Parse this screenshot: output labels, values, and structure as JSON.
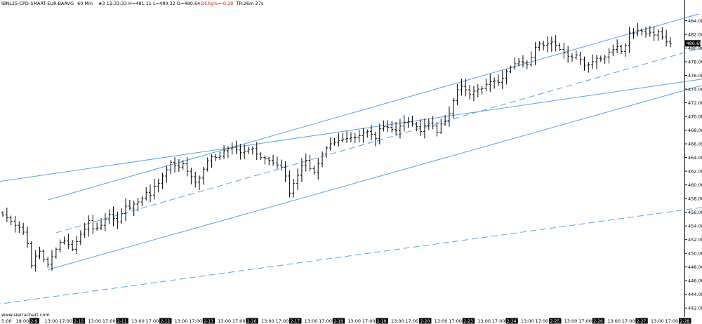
{
  "header": {
    "symbol": "IBNL25-CPD-SMART-EUR-BAAVG",
    "interval": "60 Min",
    "stats": "#3 12:33:33 H=481.11 L=480.32 O=480.64",
    "change": "DChg%=-0.30",
    "timer": "TR:26m 27s"
  },
  "watermark": "www.sierrachart.com",
  "last_price_label": "480.69",
  "colors": {
    "background": "#ffffff",
    "bars": "#000000",
    "trendlines": "#5aa0e6",
    "change_text": "#e00000",
    "last_price_box": "#000000"
  },
  "chart_data": {
    "type": "ohlc",
    "title": "IBNL25-CPD-SMART-EUR-BAAVG 60 Min",
    "ylim": [
      441,
      486
    ],
    "y_ticks": [
      "442.00",
      "444.00",
      "446.00",
      "448.00",
      "450.00",
      "452.00",
      "454.00",
      "456.00",
      "458.00",
      "460.00",
      "462.00",
      "464.00",
      "466.00",
      "468.00",
      "470.00",
      "472.00",
      "474.00",
      "476.00",
      "478.00",
      "480.00",
      "482.00",
      "484.00"
    ],
    "x_labels": [
      {
        "text": "5:00",
        "kind": "time"
      },
      {
        "text": "19:00",
        "kind": "time"
      },
      {
        "text": "2-9",
        "kind": "date"
      },
      {
        "text": "13:00",
        "kind": "time"
      },
      {
        "text": "17:00",
        "kind": "time"
      },
      {
        "text": "2-10",
        "kind": "date"
      },
      {
        "text": "13:00",
        "kind": "time"
      },
      {
        "text": "17:00",
        "kind": "time"
      },
      {
        "text": "2-11",
        "kind": "date"
      },
      {
        "text": "13:00",
        "kind": "time"
      },
      {
        "text": "17:00",
        "kind": "time"
      },
      {
        "text": "2-12",
        "kind": "date"
      },
      {
        "text": "13:00",
        "kind": "time"
      },
      {
        "text": "17:00",
        "kind": "time"
      },
      {
        "text": "2-13",
        "kind": "date"
      },
      {
        "text": "13:00",
        "kind": "time"
      },
      {
        "text": "17:00",
        "kind": "time"
      },
      {
        "text": "2-16",
        "kind": "date"
      },
      {
        "text": "13:00",
        "kind": "time"
      },
      {
        "text": "17:00",
        "kind": "time"
      },
      {
        "text": "2-17",
        "kind": "date"
      },
      {
        "text": "13:00",
        "kind": "time"
      },
      {
        "text": "17:00",
        "kind": "time"
      },
      {
        "text": "2-18",
        "kind": "date"
      },
      {
        "text": "13:00",
        "kind": "time"
      },
      {
        "text": "17:00",
        "kind": "time"
      },
      {
        "text": "2-19",
        "kind": "date"
      },
      {
        "text": "13:00",
        "kind": "time"
      },
      {
        "text": "17:00",
        "kind": "time"
      },
      {
        "text": "2-20",
        "kind": "date"
      },
      {
        "text": "13:00",
        "kind": "time"
      },
      {
        "text": "17:00",
        "kind": "time"
      },
      {
        "text": "2-23",
        "kind": "date"
      },
      {
        "text": "13:00",
        "kind": "time"
      },
      {
        "text": "17:00",
        "kind": "time"
      },
      {
        "text": "2-24",
        "kind": "date"
      },
      {
        "text": "13:00",
        "kind": "time"
      },
      {
        "text": "17:00",
        "kind": "time"
      },
      {
        "text": "2-25",
        "kind": "date"
      },
      {
        "text": "13:00",
        "kind": "time"
      },
      {
        "text": "17:00",
        "kind": "time"
      },
      {
        "text": "2-26",
        "kind": "date"
      },
      {
        "text": "13:00",
        "kind": "time"
      },
      {
        "text": "17:00",
        "kind": "time"
      },
      {
        "text": "2-27",
        "kind": "date"
      },
      {
        "text": "13:00",
        "kind": "time"
      },
      {
        "text": "17:00",
        "kind": "time"
      },
      {
        "text": "2-28",
        "kind": "date"
      }
    ],
    "closes": [
      455.6,
      455.2,
      454.7,
      454.1,
      453.8,
      453.1,
      451.4,
      448.2,
      449.6,
      450.3,
      449.1,
      448.4,
      449.5,
      450.6,
      451.6,
      451.8,
      451.3,
      450.6,
      451.7,
      452.8,
      453.5,
      454.8,
      453.6,
      453.7,
      454.1,
      455.0,
      455.7,
      455.1,
      454.6,
      455.8,
      456.9,
      456.6,
      457.2,
      457.5,
      458.0,
      458.9,
      458.5,
      459.8,
      460.2,
      461.3,
      462.2,
      463.3,
      462.8,
      462.6,
      463.1,
      462.0,
      461.2,
      460.4,
      461.0,
      462.3,
      463.5,
      464.1,
      464.0,
      464.2,
      465.0,
      465.3,
      465.5,
      465.1,
      464.7,
      464.9,
      465.2,
      465.3,
      464.5,
      464.0,
      463.8,
      463.6,
      463.2,
      462.9,
      462.6,
      461.3,
      458.8,
      460.2,
      461.4,
      462.8,
      463.6,
      462.4,
      461.8,
      463.1,
      464.5,
      465.4,
      466.0,
      466.2,
      466.5,
      466.7,
      466.8,
      466.9,
      466.9,
      467.2,
      467.6,
      467.8,
      467.4,
      466.8,
      468.2,
      468.5,
      468.4,
      468.1,
      467.9,
      468.6,
      469.1,
      469.2,
      468.9,
      468.5,
      467.8,
      468.7,
      469.0,
      468.6,
      467.7,
      468.9,
      469.3,
      470.4,
      472.3,
      473.9,
      474.4,
      473.9,
      473.2,
      473.7,
      474.0,
      474.1,
      474.7,
      475.1,
      475.2,
      475.0,
      475.6,
      476.6,
      477.2,
      477.7,
      478.0,
      477.9,
      477.6,
      478.6,
      480.1,
      480.6,
      480.4,
      480.6,
      480.9,
      480.4,
      479.8,
      479.3,
      478.8,
      478.6,
      479.0,
      478.3,
      477.5,
      477.6,
      478.0,
      478.5,
      478.4,
      478.7,
      479.4,
      479.8,
      480.2,
      479.5,
      480.4,
      482.2,
      482.2,
      482.6,
      482.4,
      482.1,
      482.3,
      481.9,
      482.4,
      481.6,
      480.9,
      480.69
    ],
    "trendlines": [
      {
        "style": "solid",
        "from": {
          "bar": -2,
          "price": 460.4
        },
        "to": {
          "bar": 178,
          "price": 476.1
        }
      },
      {
        "style": "solid",
        "from": {
          "bar": 11,
          "price": 457.8
        },
        "to": {
          "bar": 170,
          "price": 485.0
        }
      },
      {
        "style": "solid",
        "from": {
          "bar": 11,
          "price": 447.6
        },
        "to": {
          "bar": 174,
          "price": 475.1
        }
      },
      {
        "style": "dashed",
        "from": {
          "bar": 13,
          "price": 453.0
        },
        "to": {
          "bar": 175,
          "price": 480.8
        }
      },
      {
        "style": "dashed",
        "from": {
          "bar": -2,
          "price": 442.5
        },
        "to": {
          "bar": 178,
          "price": 457.3
        }
      }
    ]
  }
}
